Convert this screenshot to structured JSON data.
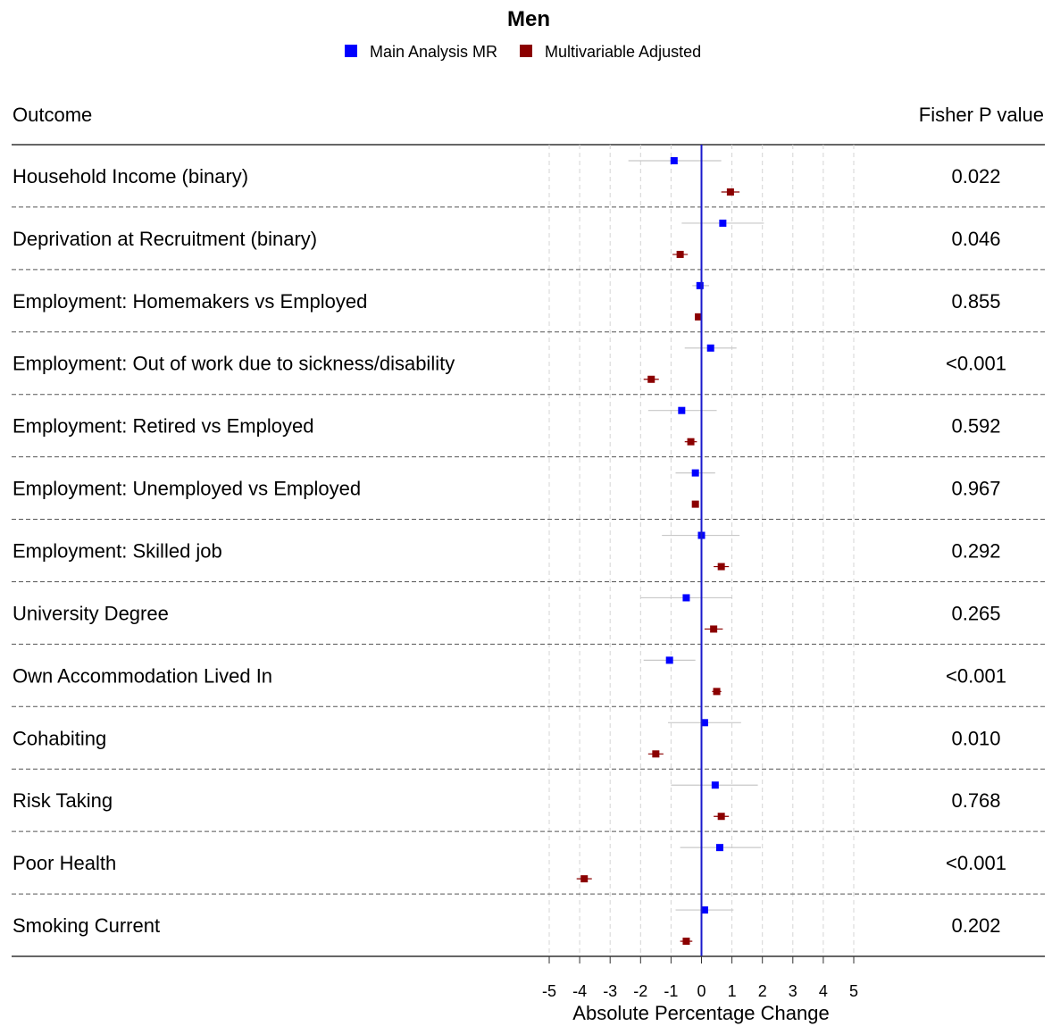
{
  "chart_data": {
    "type": "forest",
    "title": "Men",
    "legend": {
      "placement": "top-center",
      "entries": [
        {
          "name": "Main Analysis MR",
          "color": "#0000ff"
        },
        {
          "name": "Multivariable Adjusted",
          "color": "#8b0000"
        }
      ]
    },
    "column_headers": {
      "outcome": "Outcome",
      "pvalue": "Fisher P value"
    },
    "xlabel": "Absolute Percentage Change",
    "xlim": [
      -5,
      5
    ],
    "xticks": [
      -5,
      -4,
      -3,
      -2,
      -1,
      0,
      1,
      2,
      3,
      4,
      5
    ],
    "grid": "vertical dashed at each tick",
    "reference_line": 0,
    "rows": [
      {
        "outcome": "Household Income (binary)",
        "pvalue": "0.022",
        "mr": {
          "est": -0.9,
          "lo": -2.4,
          "hi": 0.65
        },
        "mv": {
          "est": 0.95,
          "lo": 0.65,
          "hi": 1.25
        }
      },
      {
        "outcome": "Deprivation at Recruitment (binary)",
        "pvalue": "0.046",
        "mr": {
          "est": 0.7,
          "lo": -0.65,
          "hi": 2.05
        },
        "mv": {
          "est": -0.7,
          "lo": -0.95,
          "hi": -0.45
        }
      },
      {
        "outcome": "Employment: Homemakers vs Employed",
        "pvalue": "0.855",
        "mr": {
          "est": -0.05,
          "lo": -0.3,
          "hi": 0.25
        },
        "mv": {
          "est": -0.1,
          "lo": -0.2,
          "hi": 0.0
        }
      },
      {
        "outcome": "Employment: Out of work due to sickness/disability",
        "pvalue": "<0.001",
        "mr": {
          "est": 0.3,
          "lo": -0.55,
          "hi": 1.15
        },
        "mv": {
          "est": -1.65,
          "lo": -1.9,
          "hi": -1.4
        }
      },
      {
        "outcome": "Employment: Retired vs Employed",
        "pvalue": "0.592",
        "mr": {
          "est": -0.65,
          "lo": -1.75,
          "hi": 0.5
        },
        "mv": {
          "est": -0.35,
          "lo": -0.55,
          "hi": -0.15
        }
      },
      {
        "outcome": "Employment: Unemployed vs Employed",
        "pvalue": "0.967",
        "mr": {
          "est": -0.2,
          "lo": -0.85,
          "hi": 0.45
        },
        "mv": {
          "est": -0.2,
          "lo": -0.3,
          "hi": -0.1
        }
      },
      {
        "outcome": "Employment: Skilled job",
        "pvalue": "0.292",
        "mr": {
          "est": 0.0,
          "lo": -1.3,
          "hi": 1.25
        },
        "mv": {
          "est": 0.65,
          "lo": 0.4,
          "hi": 0.9
        }
      },
      {
        "outcome": "University Degree",
        "pvalue": "0.265",
        "mr": {
          "est": -0.5,
          "lo": -2.0,
          "hi": 1.0
        },
        "mv": {
          "est": 0.4,
          "lo": 0.1,
          "hi": 0.7
        }
      },
      {
        "outcome": "Own Accommodation Lived In",
        "pvalue": "<0.001",
        "mr": {
          "est": -1.05,
          "lo": -1.9,
          "hi": -0.2
        },
        "mv": {
          "est": 0.5,
          "lo": 0.35,
          "hi": 0.65
        }
      },
      {
        "outcome": "Cohabiting",
        "pvalue": "0.010",
        "mr": {
          "est": 0.1,
          "lo": -1.1,
          "hi": 1.3
        },
        "mv": {
          "est": -1.5,
          "lo": -1.75,
          "hi": -1.25
        }
      },
      {
        "outcome": "Risk Taking",
        "pvalue": "0.768",
        "mr": {
          "est": 0.45,
          "lo": -1.0,
          "hi": 1.85
        },
        "mv": {
          "est": 0.65,
          "lo": 0.4,
          "hi": 0.9
        }
      },
      {
        "outcome": "Poor Health",
        "pvalue": "<0.001",
        "mr": {
          "est": 0.6,
          "lo": -0.7,
          "hi": 1.95
        },
        "mv": {
          "est": -3.85,
          "lo": -4.1,
          "hi": -3.6
        }
      },
      {
        "outcome": "Smoking Current",
        "pvalue": "0.202",
        "mr": {
          "est": 0.1,
          "lo": -0.85,
          "hi": 1.05
        },
        "mv": {
          "est": -0.5,
          "lo": -0.7,
          "hi": -0.3
        }
      }
    ]
  }
}
